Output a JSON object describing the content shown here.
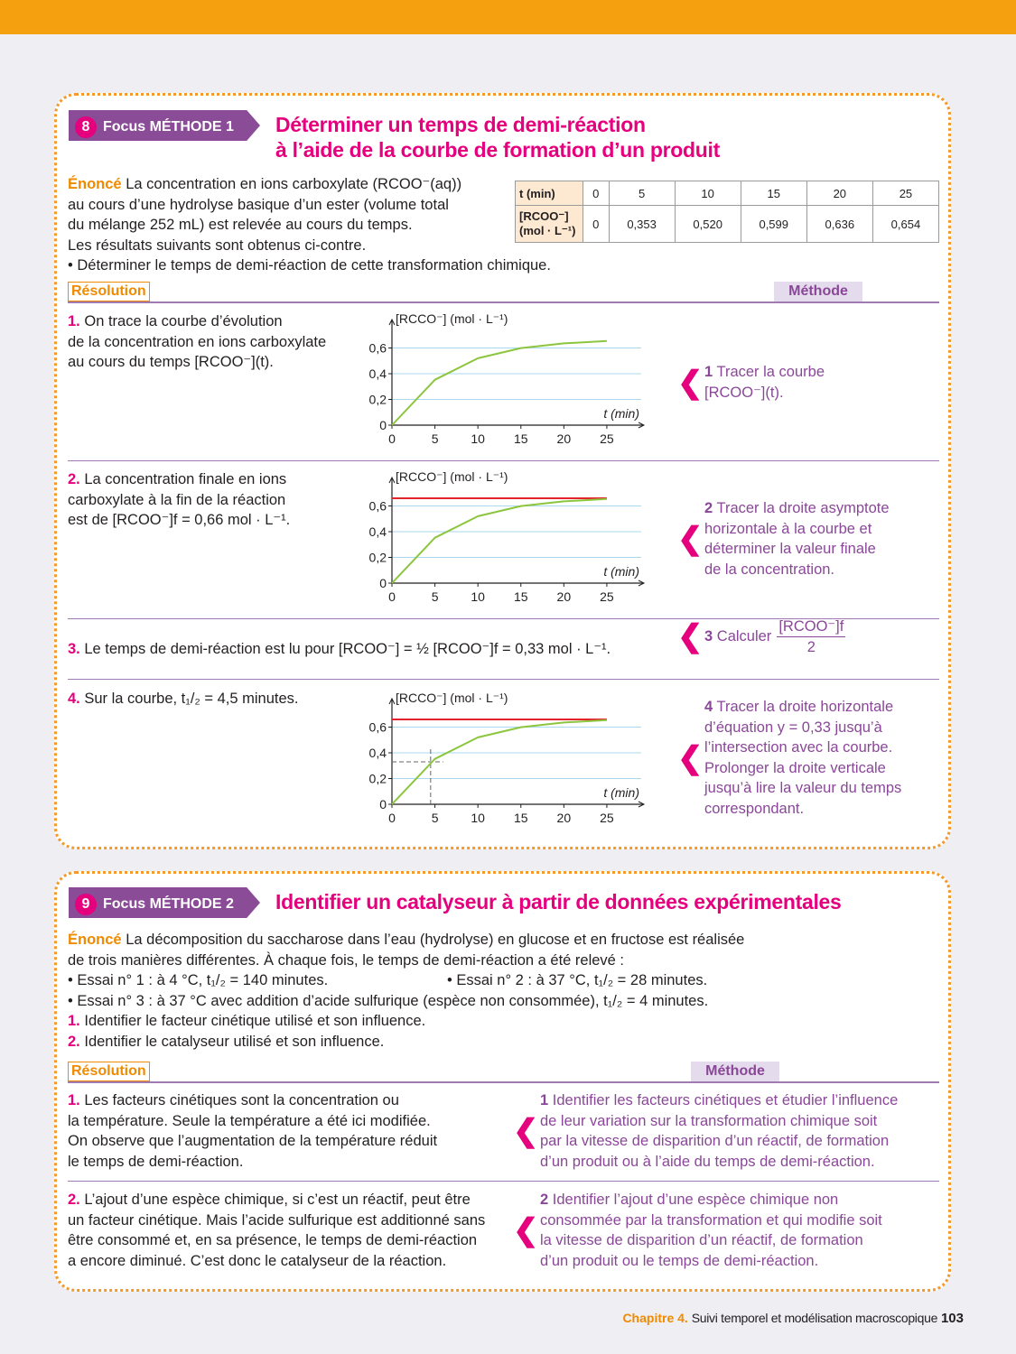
{
  "sections": [
    {
      "number": "8",
      "tag": "Focus MÉTHODE 1",
      "title": [
        "Déterminer un temps de demi-réaction",
        "à l’aide de la courbe de formation d’un produit"
      ],
      "statement": {
        "label": "Énoncé",
        "lines": [
          "La concentration en ions carboxylate (RCOO⁻(aq))",
          "au cours d’une hydrolyse basique d’un ester (volume total",
          "du mélange 252 mL) est relevée au cours du temps.",
          "Les résultats suivants sont obtenus ci-contre.",
          "• Déterminer le temps de demi-réaction de cette transformation chimique."
        ]
      },
      "table": {
        "rows": [
          [
            "t (min)",
            "0",
            "5",
            "10",
            "15",
            "20",
            "25"
          ],
          [
            "[RCOO⁻] (mol · L⁻¹)",
            "0",
            "0,353",
            "0,520",
            "0,599",
            "0,636",
            "0,654"
          ]
        ]
      },
      "resolution": "Résolution",
      "method": "Méthode",
      "steps": [
        {
          "number": "1.",
          "text": [
            "On trace la courbe d’évolution",
            "de la concentration en ions carboxylate",
            "au cours du temps [RCOO⁻](t)."
          ],
          "chart": {
            "ylabel": "[RCCO⁻] (mol · L⁻¹)",
            "xlabel": "t (min)",
            "xlim": [
              0,
              29
            ],
            "ylim": [
              0,
              0.8
            ],
            "xticks": [
              0,
              5,
              10,
              15,
              20,
              25
            ],
            "yticks": [
              0,
              {
                "value": 0.2,
                "label": "0,2"
              },
              {
                "value": 0.4,
                "label": "0,4"
              },
              {
                "value": 0.6,
                "label": "0,6"
              }
            ],
            "grid": true,
            "x": [
              0,
              5,
              10,
              15,
              20,
              25
            ],
            "y": [
              0,
              0.353,
              0.52,
              0.599,
              0.636,
              0.654
            ],
            "color": "#8cc63e"
          },
          "method_number": "1",
          "method_text": [
            "Tracer la courbe",
            "[RCOO⁻](t)."
          ]
        },
        {
          "number": "2.",
          "text": [
            "La concentration finale en ions",
            "carboxylate à la fin de la réaction",
            "est de [RCOO⁻]f = 0,66 mol · L⁻¹."
          ],
          "chart": {
            "ylabel": "[RCCO⁻] (mol · L⁻¹)",
            "xlabel": "t (min)",
            "xlim": [
              0,
              29
            ],
            "ylim": [
              0,
              0.8
            ],
            "xticks": [
              0,
              5,
              10,
              15,
              20,
              25
            ],
            "yticks": [
              0,
              {
                "value": 0.2,
                "label": "0,2"
              },
              {
                "value": 0.4,
                "label": "0,4"
              },
              {
                "value": 0.6,
                "label": "0,6"
              }
            ],
            "grid": true,
            "x": [
              0,
              5,
              10,
              15,
              20,
              25
            ],
            "y": [
              0,
              0.353,
              0.52,
              0.599,
              0.636,
              0.654
            ],
            "color": "#8cc63e",
            "asymptote": 0.66,
            "asymptote_color": "#e3222b"
          },
          "method_number": "2",
          "method_text": [
            "Tracer la droite asymptote",
            "horizontale à la courbe et",
            "déterminer la valeur finale",
            "de la concentration."
          ]
        },
        {
          "number": "3.",
          "text": [
            "Le temps de demi-réaction est lu pour [RCOO⁻] = ½ [RCOO⁻]f = 0,33 mol · L⁻¹."
          ],
          "method_number": "3",
          "method_text": [
            "Calculer"
          ],
          "method_fraction": {
            "numerator": "[RCOO⁻]f",
            "denominator": "2"
          }
        },
        {
          "number": "4.",
          "text": [
            "Sur la courbe, t₁/₂ = 4,5 minutes."
          ],
          "chart": {
            "ylabel": "[RCCO⁻] (mol · L⁻¹)",
            "xlabel": "t (min)",
            "xlim": [
              0,
              29
            ],
            "ylim": [
              0,
              0.8
            ],
            "xticks": [
              0,
              5,
              10,
              15,
              20,
              25
            ],
            "yticks": [
              0,
              {
                "value": 0.2,
                "label": "0,2"
              },
              {
                "value": 0.4,
                "label": "0,4"
              },
              {
                "value": 0.6,
                "label": "0,6"
              }
            ],
            "grid": true,
            "x": [
              0,
              5,
              10,
              15,
              20,
              25
            ],
            "y": [
              0,
              0.353,
              0.52,
              0.599,
              0.636,
              0.654
            ],
            "color": "#8cc63e",
            "asymptote": 0.66,
            "asymptote_color": "#e3222b",
            "half": {
              "x": 4.5,
              "y": 0.33
            }
          },
          "method_number": "4",
          "method_text": [
            "Tracer la droite horizontale",
            "d’équation y = 0,33 jusqu’à",
            "l’intersection avec la courbe.",
            "Prolonger la droite verticale",
            "jusqu’à lire la valeur du temps",
            "correspondant."
          ]
        }
      ]
    },
    {
      "number": "9",
      "tag": "Focus MÉTHODE 2",
      "title": [
        "Identifier un catalyseur à partir de données expérimentales"
      ],
      "statement": {
        "label": "Énoncé",
        "lines": [
          "La décomposition du saccharose dans l’eau (hydrolyse) en glucose et en fructose est réalisée",
          "de trois manières différentes. À chaque fois, le temps de demi-réaction a été relevé :"
        ],
        "items": [
          "• Essai n° 1 : à 4 °C, t₁/₂ = 140 minutes.",
          "• Essai n° 2 : à 37 °C, t₁/₂ = 28 minutes.",
          "• Essai n° 3 : à 37 °C avec addition d’acide sulfurique (espèce non consommée), t₁/₂ = 4 minutes."
        ],
        "questions": [
          {
            "number": "1.",
            "text": "Identifier le facteur cinétique utilisé et son influence."
          },
          {
            "number": "2.",
            "text": "Identifier le catalyseur utilisé et son influence."
          }
        ]
      },
      "resolution": "Résolution",
      "method": "Méthode",
      "steps": [
        {
          "number": "1.",
          "text": [
            "Les facteurs cinétiques sont la concentration ou",
            "la température. Seule la température a été ici modifiée.",
            "On observe que l’augmentation de la température réduit",
            "le temps de demi-réaction."
          ],
          "method_number": "1",
          "method_text": [
            "Identifier les facteurs cinétiques et étudier l’influence",
            "de leur variation sur la transformation chimique soit",
            "par la vitesse de disparition d’un réactif, de formation",
            "d’un produit ou à l’aide du temps de demi-réaction."
          ]
        },
        {
          "number": "2.",
          "text": [
            "L’ajout d’une espèce chimique, si c’est un réactif, peut être",
            "un facteur cinétique. Mais l’acide sulfurique est additionné sans",
            "être consommé et, en sa présence, le temps de demi-réaction",
            "a encore diminué. C’est donc le catalyseur de la réaction."
          ],
          "method_number": "2",
          "method_text": [
            "Identifier l’ajout d’une espèce chimique non",
            "consommée par la transformation et qui modifie soit",
            "la vitesse de disparition d’un réactif, de formation",
            "d’un produit ou le temps de demi-réaction."
          ]
        }
      ]
    }
  ],
  "footer": {
    "chapter": "Chapitre 4.",
    "title": "Suivi temporel et modélisation macroscopique",
    "page": "103"
  }
}
